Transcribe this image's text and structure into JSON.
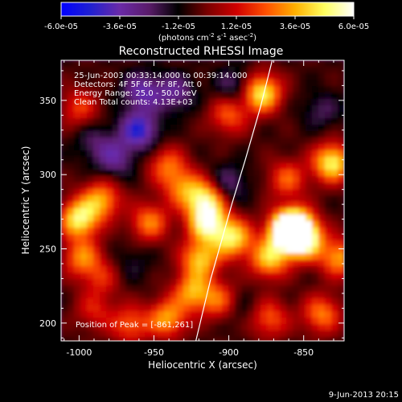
{
  "colorbar": {
    "tick_labels": [
      "-6.0e-05",
      "-3.6e-05",
      "-1.2e-05",
      "1.2e-05",
      "3.6e-05",
      "6.0e-05"
    ],
    "units_main": "(photons cm",
    "units_sup1": "-2",
    "units_mid1": " s",
    "units_sup2": "-1",
    "units_mid2": " asec",
    "units_sup3": "-2",
    "units_end": ")",
    "colormap_stops": [
      "#0000ff",
      "#2020d0",
      "#6a2aa8",
      "#5a1c6a",
      "#000000",
      "#7a0000",
      "#d00000",
      "#ff5000",
      "#ffb000",
      "#ffff60",
      "#ffffff"
    ]
  },
  "plot": {
    "title": "Reconstructed RHESSI Image",
    "info_line1": "25-Jun-2003 00:33:14.000 to 00:39:14.000",
    "info_line2": "Detectors: 4F 5F 6F 7F 8F, Att 0",
    "info_line3": "Energy Range: 25.0 - 50.0 keV",
    "info_line4": "Clean     Total counts: 4.13E+03",
    "peak_text": "Position of Peak = [-861,261]",
    "x_label": "Heliocentric X (arcsec)",
    "y_label": "Heliocentric Y (arcsec)",
    "x_ticks": [
      "-1000",
      "-950",
      "-900",
      "-850"
    ],
    "y_ticks": [
      "200",
      "250",
      "300",
      "350"
    ],
    "footer_date": "9-Jun-2013 20:15"
  },
  "chart_data": {
    "type": "heatmap",
    "title": "Reconstructed RHESSI Image",
    "xlabel": "Heliocentric X (arcsec)",
    "ylabel": "Heliocentric Y (arcsec)",
    "xlim": [
      -1012,
      -823
    ],
    "ylim": [
      188,
      377
    ],
    "zlim": [
      -6e-05,
      6e-05
    ],
    "peak": [
      -861,
      261
    ],
    "blobs": [
      {
        "x": -1000,
        "y": 270,
        "v": 5.5e-05
      },
      {
        "x": -985,
        "y": 283,
        "v": 4e-05
      },
      {
        "x": -998,
        "y": 244,
        "v": 3.5e-05
      },
      {
        "x": -1000,
        "y": 345,
        "v": 2.5e-05
      },
      {
        "x": -985,
        "y": 230,
        "v": 2e-05
      },
      {
        "x": -990,
        "y": 208,
        "v": 2e-05
      },
      {
        "x": -966,
        "y": 199,
        "v": 3e-05
      },
      {
        "x": -941,
        "y": 203,
        "v": 4e-05
      },
      {
        "x": -953,
        "y": 268,
        "v": 3.5e-05
      },
      {
        "x": -941,
        "y": 306,
        "v": 3e-05
      },
      {
        "x": -931,
        "y": 291,
        "v": 3e-05
      },
      {
        "x": -916,
        "y": 283,
        "v": 5e-05
      },
      {
        "x": -914,
        "y": 267,
        "v": 5.5e-05
      },
      {
        "x": -919,
        "y": 243,
        "v": 4.5e-05
      },
      {
        "x": -924,
        "y": 221,
        "v": 4e-05
      },
      {
        "x": -906,
        "y": 215,
        "v": 3e-05
      },
      {
        "x": -897,
        "y": 257,
        "v": 5e-05
      },
      {
        "x": -873,
        "y": 243,
        "v": 4.5e-05
      },
      {
        "x": -856,
        "y": 265,
        "v": 6e-05
      },
      {
        "x": -861,
        "y": 261,
        "v": 6e-05
      },
      {
        "x": -849,
        "y": 255,
        "v": 5e-05
      },
      {
        "x": -826,
        "y": 244,
        "v": 4e-05
      },
      {
        "x": -831,
        "y": 308,
        "v": 5.5e-05
      },
      {
        "x": -861,
        "y": 297,
        "v": 3e-05
      },
      {
        "x": -878,
        "y": 355,
        "v": 5.5e-05
      },
      {
        "x": -900,
        "y": 340,
        "v": 3e-05
      },
      {
        "x": -873,
        "y": 203,
        "v": 3e-05
      },
      {
        "x": -838,
        "y": 206,
        "v": 3.5e-05
      },
      {
        "x": -960,
        "y": 330,
        "v": -4e-05
      },
      {
        "x": -958,
        "y": 356,
        "v": -3e-05
      },
      {
        "x": -936,
        "y": 355,
        "v": -2.5e-05
      },
      {
        "x": -896,
        "y": 360,
        "v": -2e-05
      },
      {
        "x": -976,
        "y": 311,
        "v": -2.5e-05
      },
      {
        "x": -900,
        "y": 294,
        "v": -2e-05
      },
      {
        "x": -990,
        "y": 322,
        "v": -1.5e-05
      },
      {
        "x": -838,
        "y": 343,
        "v": -1.5e-05
      },
      {
        "x": -893,
        "y": 210,
        "v": -1e-05
      },
      {
        "x": -965,
        "y": 240,
        "v": -1e-05
      }
    ],
    "limb_curve": [
      [
        -922,
        188
      ],
      [
        -918,
        205
      ],
      [
        -912,
        230
      ],
      [
        -905,
        255
      ],
      [
        -898,
        280
      ],
      [
        -889,
        310
      ],
      [
        -879,
        345
      ],
      [
        -871,
        377
      ]
    ]
  }
}
